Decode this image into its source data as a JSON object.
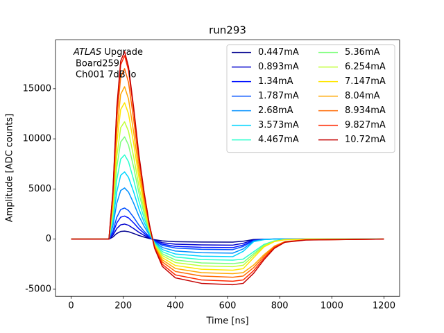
{
  "chart_data": {
    "type": "line",
    "title": "run293",
    "xlabel": "Time [ns]",
    "ylabel": "Amplitude [ADC counts]",
    "annotation": {
      "experiment": "ATLAS",
      "label": "Upgrade",
      "lines": [
        "Board259",
        "Ch001 7dB lo"
      ]
    },
    "x": [
      0,
      145,
      160,
      175,
      190,
      205,
      220,
      240,
      260,
      280,
      300,
      320,
      350,
      400,
      500,
      620,
      660,
      700,
      740,
      780,
      820,
      900,
      1200
    ],
    "series": [
      {
        "name": "0.447mA",
        "color": "#00008f",
        "values": [
          0,
          0,
          200,
          560,
          760,
          800,
          736,
          560,
          360,
          200,
          64,
          -60,
          -180,
          -255,
          -291,
          -300,
          -210,
          -45,
          -9,
          0,
          0,
          0,
          0
        ]
      },
      {
        "name": "0.893mA",
        "color": "#0000cd",
        "values": [
          0,
          0,
          375,
          1050,
          1425,
          1500,
          1380,
          1050,
          675,
          375,
          120,
          -120,
          -360,
          -510,
          -582,
          -600,
          -420,
          -90,
          -18,
          0,
          0,
          0,
          0
        ]
      },
      {
        "name": "1.34mA",
        "color": "#0010ff",
        "values": [
          0,
          0,
          575,
          1610,
          2185,
          2300,
          2116,
          1610,
          1035,
          575,
          184,
          -170,
          -510,
          -722,
          -824,
          -850,
          -595,
          -128,
          -26,
          0,
          0,
          0,
          0
        ]
      },
      {
        "name": "1.787mA",
        "color": "#0050ff",
        "values": [
          0,
          0,
          775,
          2170,
          2945,
          3100,
          2852,
          2170,
          1395,
          775,
          248,
          -210,
          -630,
          -892,
          -1018,
          -1050,
          -735,
          -158,
          -32,
          0,
          0,
          0,
          0
        ]
      },
      {
        "name": "2.68mA",
        "color": "#0090ff",
        "values": [
          0,
          0,
          1275,
          3570,
          4845,
          5100,
          4692,
          3570,
          2295,
          1275,
          408,
          -280,
          -840,
          -1190,
          -1358,
          -1400,
          -980,
          -210,
          -42,
          0,
          0,
          0,
          0
        ]
      },
      {
        "name": "3.573mA",
        "color": "#00d4ff",
        "values": [
          0,
          0,
          1675,
          4690,
          6365,
          6700,
          6164,
          4690,
          3015,
          1675,
          536,
          -350,
          -1050,
          -1488,
          -1698,
          -1750,
          -1225,
          -262,
          -52,
          0,
          0,
          0,
          0
        ]
      },
      {
        "name": "4.467mA",
        "color": "#29ffce",
        "values": [
          0,
          0,
          2100,
          5880,
          7980,
          8400,
          7728,
          5880,
          3780,
          2100,
          672,
          -420,
          -1260,
          -1785,
          -2037,
          -2100,
          -1995,
          -1260,
          -525,
          -168,
          -42,
          0,
          0
        ]
      },
      {
        "name": "5.36mA",
        "color": "#7dff7a",
        "values": [
          0,
          0,
          2550,
          7140,
          9690,
          10200,
          9384,
          7140,
          4590,
          2550,
          816,
          -490,
          -1470,
          -2082,
          -2376,
          -2450,
          -2328,
          -1470,
          -612,
          -196,
          -49,
          0,
          0
        ]
      },
      {
        "name": "6.254mA",
        "color": "#c1ff36",
        "values": [
          0,
          0,
          2925,
          8190,
          11115,
          11700,
          10764,
          8190,
          5265,
          2925,
          936,
          -550,
          -1650,
          -2338,
          -2668,
          -2750,
          -2612,
          -1650,
          -688,
          -220,
          -55,
          0,
          0
        ]
      },
      {
        "name": "7.147mA",
        "color": "#ffe600",
        "values": [
          0,
          0,
          3400,
          9520,
          12920,
          13600,
          12512,
          9520,
          6120,
          3400,
          1088,
          -620,
          -1860,
          -2635,
          -3007,
          -3100,
          -2945,
          -1860,
          -775,
          -248,
          -62,
          0,
          0
        ]
      },
      {
        "name": "8.04mA",
        "color": "#ffa700",
        "values": [
          0,
          0,
          3800,
          10640,
          14440,
          15200,
          13984,
          10640,
          6840,
          3800,
          1216,
          -690,
          -2070,
          -2932,
          -3346,
          -3450,
          -3346,
          -2588,
          -1552,
          -690,
          -242,
          -69,
          0
        ]
      },
      {
        "name": "8.934mA",
        "color": "#ff6800",
        "values": [
          0,
          0,
          4250,
          11900,
          16150,
          17000,
          15640,
          11900,
          7650,
          4250,
          1360,
          -760,
          -2280,
          -3230,
          -3686,
          -3800,
          -3686,
          -2850,
          -1710,
          -760,
          -266,
          -76,
          0
        ]
      },
      {
        "name": "9.827mA",
        "color": "#ff2900",
        "values": [
          0,
          0,
          4575,
          12810,
          17385,
          18300,
          16836,
          12810,
          8235,
          4575,
          1464,
          -840,
          -2520,
          -3570,
          -4074,
          -4200,
          -4074,
          -3150,
          -1890,
          -840,
          -294,
          -84,
          0
        ]
      },
      {
        "name": "10.72mA",
        "color": "#c40000",
        "values": [
          0,
          0,
          4675,
          13090,
          17765,
          18700,
          17204,
          13090,
          8415,
          4675,
          1496,
          -910,
          -2730,
          -3868,
          -4414,
          -4550,
          -4414,
          -3412,
          -2048,
          -910,
          -318,
          -91,
          0
        ]
      }
    ],
    "xlim": [
      -60,
      1260
    ],
    "ylim": [
      -5712,
      19862
    ],
    "xticks": [
      0,
      200,
      400,
      600,
      800,
      1000,
      1200
    ],
    "yticks": [
      -5000,
      0,
      5000,
      10000,
      15000
    ],
    "legend": "upper right",
    "legend_columns": 2
  }
}
